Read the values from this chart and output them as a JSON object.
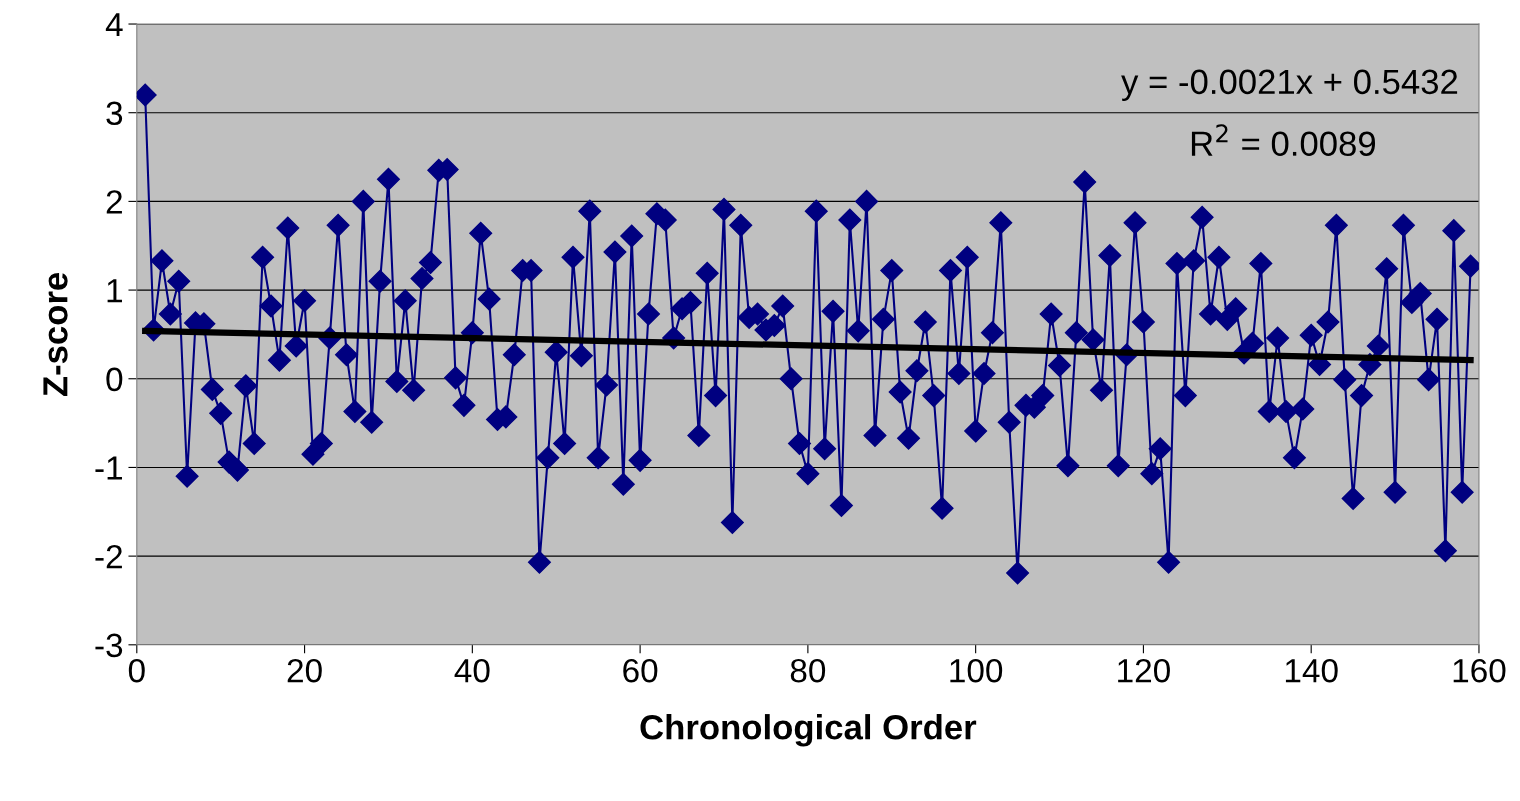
{
  "chart_data": {
    "type": "line",
    "xlabel": "Chronological Order",
    "ylabel": "Z-score",
    "xlim": [
      0,
      160
    ],
    "xticks": [
      0,
      20,
      40,
      60,
      80,
      100,
      120,
      140,
      160
    ],
    "ylim": [
      -3,
      4
    ],
    "yticks": [
      -3,
      -2,
      -1,
      0,
      1,
      2,
      3,
      4
    ],
    "grid": "y",
    "marker": "diamond",
    "line_style": "solid",
    "annotations": [
      "y = -0.0021x + 0.5432",
      "R$^{2}$ = 0.0089"
    ],
    "series": [
      {
        "color": "#000080",
        "x": [
          1,
          2,
          3,
          4,
          5,
          6,
          7,
          8,
          9,
          10,
          11,
          12,
          13,
          14,
          15,
          16,
          17,
          18,
          19,
          20,
          21,
          22,
          23,
          24,
          25,
          26,
          27,
          28,
          29,
          30,
          31,
          32,
          33,
          34,
          35,
          36,
          37,
          38,
          39,
          40,
          41,
          42,
          43,
          44,
          45,
          46,
          47,
          48,
          49,
          50,
          51,
          52,
          53,
          54,
          55,
          56,
          57,
          58,
          59,
          60,
          61,
          62,
          63,
          64,
          65,
          66,
          67,
          68,
          69,
          70,
          71,
          72,
          73,
          74,
          75,
          76,
          77,
          78,
          79,
          80,
          81,
          82,
          83,
          84,
          85,
          86,
          87,
          88,
          89,
          90,
          91,
          92,
          93,
          94,
          95,
          96,
          97,
          98,
          99,
          100,
          101,
          102,
          103,
          104,
          105,
          106,
          107,
          108,
          109,
          110,
          111,
          112,
          113,
          114,
          115,
          116,
          117,
          118,
          119,
          120,
          121,
          122,
          123,
          124,
          125,
          126,
          127,
          128,
          129,
          130,
          131,
          132,
          133,
          134,
          135,
          136,
          137,
          138,
          139,
          140,
          141,
          142,
          143,
          144,
          145,
          146,
          147,
          148,
          149,
          150,
          151,
          152,
          153,
          154,
          155,
          156,
          157,
          158,
          159
        ],
        "values": [
          3.2,
          0.55,
          1.33,
          0.73,
          1.1,
          -1.1,
          0.63,
          0.62,
          -0.12,
          -0.39,
          -0.94,
          -1.03,
          -0.08,
          -0.73,
          1.37,
          0.82,
          0.21,
          1.7,
          0.37,
          0.88,
          -0.85,
          -0.73,
          0.46,
          1.73,
          0.27,
          -0.37,
          2.0,
          -0.49,
          1.1,
          2.25,
          -0.03,
          0.88,
          -0.13,
          1.13,
          1.31,
          2.35,
          2.36,
          0.01,
          -0.3,
          0.52,
          1.64,
          0.9,
          -0.46,
          -0.43,
          0.27,
          1.22,
          1.22,
          -2.07,
          -0.89,
          0.3,
          -0.73,
          1.37,
          0.26,
          1.89,
          -0.89,
          -0.07,
          1.43,
          -1.19,
          1.61,
          -0.92,
          0.73,
          1.86,
          1.79,
          0.46,
          0.79,
          0.86,
          -0.64,
          1.19,
          -0.19,
          1.91,
          -1.62,
          1.73,
          0.69,
          0.73,
          0.55,
          0.6,
          0.82,
          0.0,
          -0.73,
          -1.07,
          1.89,
          -0.79,
          0.76,
          -1.43,
          1.79,
          0.54,
          2.0,
          -0.64,
          0.67,
          1.22,
          -0.15,
          -0.67,
          0.09,
          0.64,
          -0.19,
          -1.46,
          1.22,
          0.06,
          1.37,
          -0.59,
          0.06,
          0.52,
          1.76,
          -0.49,
          -2.19,
          -0.3,
          -0.32,
          -0.19,
          0.73,
          0.15,
          -0.98,
          0.52,
          2.22,
          0.44,
          -0.13,
          1.39,
          -0.98,
          0.27,
          1.76,
          0.64,
          -1.07,
          -0.79,
          -2.07,
          1.3,
          -0.19,
          1.33,
          1.82,
          0.73,
          1.37,
          0.67,
          0.79,
          0.29,
          0.4,
          1.3,
          -0.37,
          0.46,
          -0.37,
          -0.89,
          -0.34,
          0.49,
          0.16,
          0.64,
          1.73,
          -0.01,
          -1.35,
          -0.19,
          0.16,
          0.37,
          1.24,
          -1.28,
          1.73,
          0.86,
          0.96,
          -0.01,
          0.67,
          -1.94,
          1.67,
          -1.28,
          1.27
        ]
      },
      {
        "color": "#000000",
        "marker": "none",
        "x": [
          1,
          159
        ],
        "values": [
          0.54,
          0.21
        ]
      }
    ]
  }
}
